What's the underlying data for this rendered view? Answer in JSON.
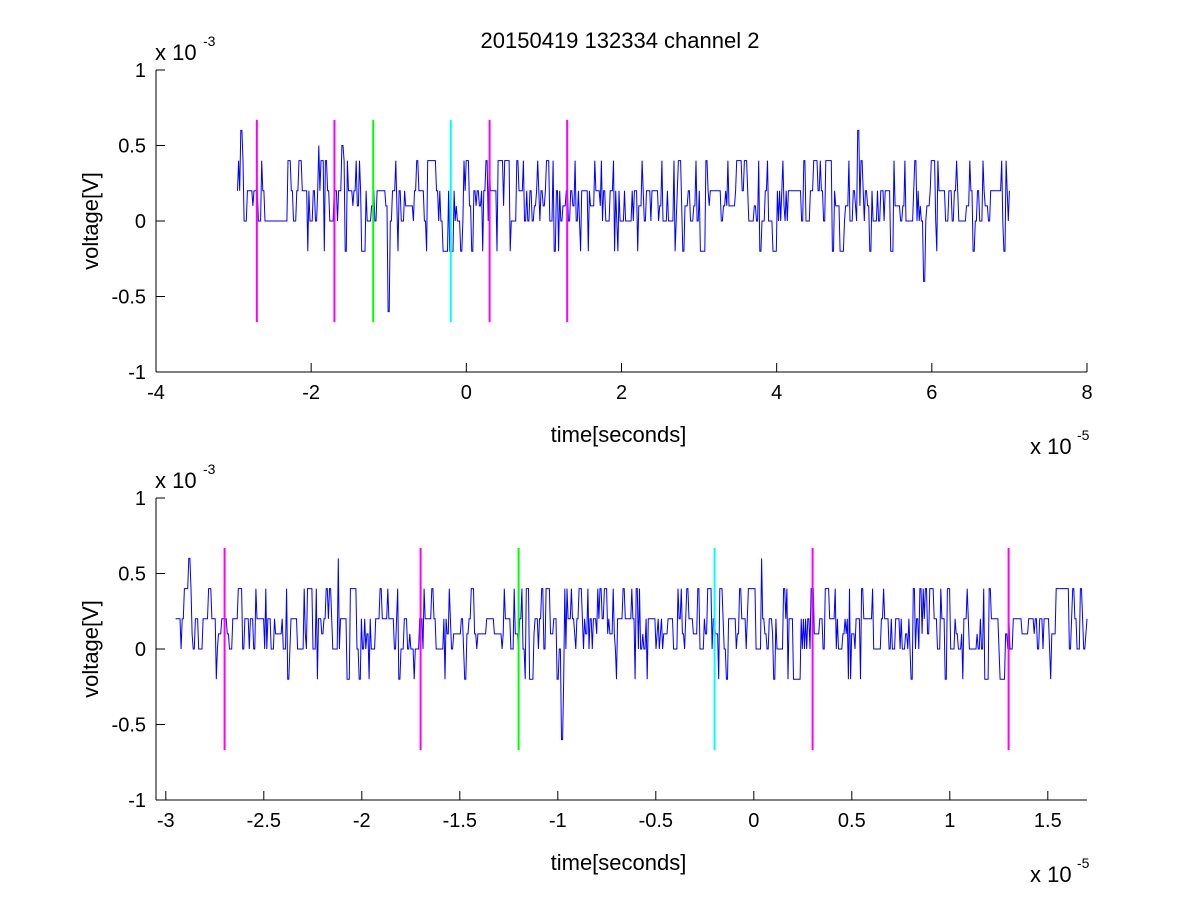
{
  "figure_title": "20150419 132334 channel 2",
  "chart_data": [
    {
      "type": "line",
      "title": "20150419 132334 channel 2",
      "xlabel": "time[seconds]",
      "ylabel": "voltage[V]",
      "x_multiplier": "x 10",
      "x_exponent": "-5",
      "y_multiplier": "x 10",
      "y_exponent": "-3",
      "xlim": [
        -4,
        8
      ],
      "ylim": [
        -1,
        1
      ],
      "xticks": [
        -4,
        -2,
        0,
        2,
        4,
        6,
        8
      ],
      "xtick_labels": [
        "-4",
        "-2",
        "0",
        "2",
        "4",
        "6",
        "8"
      ],
      "yticks": [
        -1,
        -0.5,
        0,
        0.5,
        1
      ],
      "ytick_labels": [
        "-1",
        "-0.5",
        "0",
        "0.5",
        "1"
      ],
      "signal_x_range": [
        -2.95,
        7.0
      ],
      "signal": {
        "color": "#0000ff",
        "levels": [
          -0.6,
          -0.4,
          -0.2,
          0,
          0.2,
          0.4,
          0.6
        ],
        "peaks": [
          [
            -2.9,
            0.6
          ],
          [
            -1.9,
            0.5
          ],
          [
            -1.6,
            0.5
          ],
          [
            -1.0,
            -0.6
          ],
          [
            -0.3,
            -0.2
          ],
          [
            0.5,
            0.4
          ],
          [
            5.05,
            0.6
          ],
          [
            5.9,
            -0.4
          ]
        ]
      },
      "markers": [
        {
          "x": -2.7,
          "color": "#ff00ff"
        },
        {
          "x": -1.7,
          "color": "#ff00ff"
        },
        {
          "x": -1.2,
          "color": "#00ff00"
        },
        {
          "x": -0.2,
          "color": "#00ffff"
        },
        {
          "x": 0.3,
          "color": "#ff00ff"
        },
        {
          "x": 1.3,
          "color": "#ff00ff"
        }
      ],
      "marker_range": [
        -0.67,
        0.67
      ]
    },
    {
      "type": "line",
      "title": "",
      "xlabel": "time[seconds]",
      "ylabel": "voltage[V]",
      "x_multiplier": "x 10",
      "x_exponent": "-5",
      "y_multiplier": "x 10",
      "y_exponent": "-3",
      "xlim": [
        -3.05,
        1.7
      ],
      "ylim": [
        -1,
        1
      ],
      "xticks": [
        -3,
        -2.5,
        -2,
        -1.5,
        -1,
        -0.5,
        0,
        0.5,
        1,
        1.5
      ],
      "xtick_labels": [
        "-3",
        "-2.5",
        "-2",
        "-1.5",
        "-1",
        "-0.5",
        "0",
        "0.5",
        "1",
        "1.5"
      ],
      "yticks": [
        -1,
        -0.5,
        0,
        0.5,
        1
      ],
      "ytick_labels": [
        "-1",
        "-0.5",
        "0",
        "0.5",
        "1"
      ],
      "signal_x_range": [
        -2.95,
        1.7
      ],
      "signal": {
        "color": "#0000ff",
        "levels": [
          -0.6,
          -0.4,
          -0.2,
          0,
          0.2,
          0.4,
          0.6
        ],
        "peaks": [
          [
            -2.88,
            0.6
          ],
          [
            -2.12,
            0.6
          ],
          [
            -0.98,
            -0.6
          ],
          [
            0.04,
            0.6
          ],
          [
            -0.07,
            0.4
          ],
          [
            0.98,
            -0.2
          ],
          [
            1.27,
            -0.2
          ]
        ]
      },
      "markers": [
        {
          "x": -2.7,
          "color": "#ff00ff"
        },
        {
          "x": -1.7,
          "color": "#ff00ff"
        },
        {
          "x": -1.2,
          "color": "#00ff00"
        },
        {
          "x": -0.2,
          "color": "#00ffff"
        },
        {
          "x": 0.3,
          "color": "#ff00ff"
        },
        {
          "x": 1.3,
          "color": "#ff00ff"
        }
      ],
      "marker_range": [
        -0.67,
        0.67
      ]
    }
  ]
}
